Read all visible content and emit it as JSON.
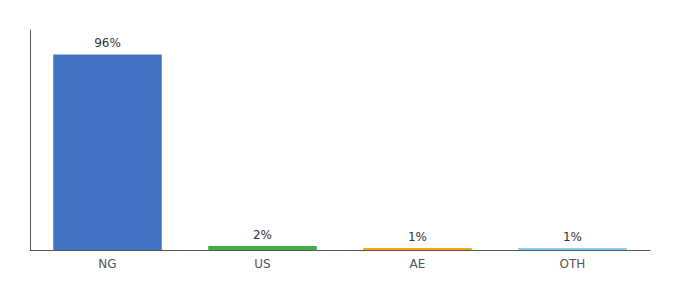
{
  "chart_data": {
    "type": "bar",
    "categories": [
      "NG",
      "US",
      "AE",
      "OTH"
    ],
    "values": [
      96,
      2,
      1,
      1
    ],
    "value_labels": [
      "96%",
      "2%",
      "1%",
      "1%"
    ],
    "data_labels": true,
    "colors": [
      "#4472C4",
      "#3CB043",
      "#FFA500",
      "#87CEEB"
    ],
    "ylim": [
      0,
      108
    ],
    "grid": false,
    "tick_labels": "x"
  }
}
